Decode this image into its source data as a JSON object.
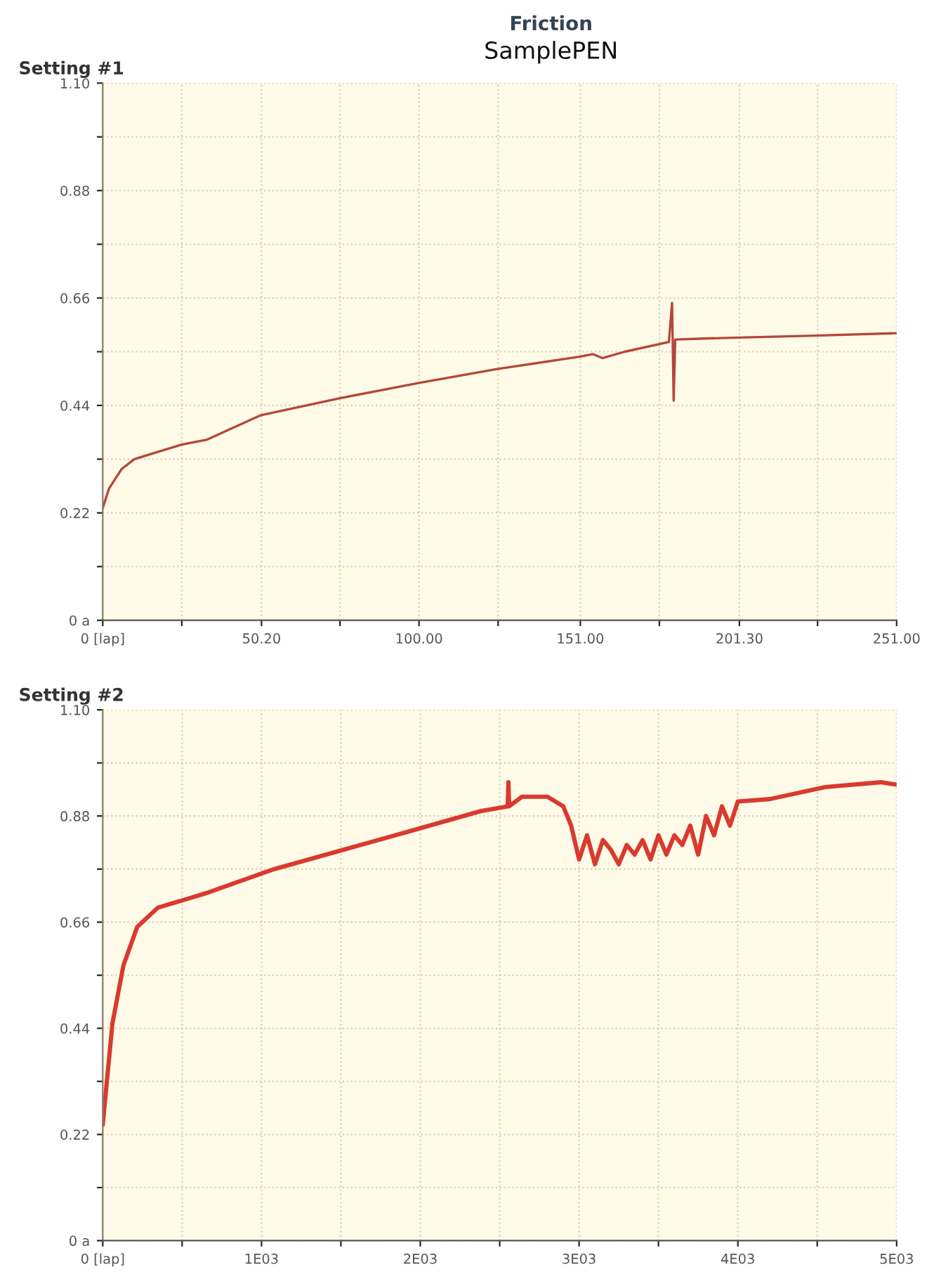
{
  "chart_data": [
    {
      "type": "line",
      "title": "Friction",
      "subtitle": "SamplePEN",
      "annotations": [
        "Setting #1"
      ],
      "x": [
        0,
        1,
        2,
        4,
        6,
        10,
        15,
        25,
        33,
        50,
        75,
        100,
        125,
        151,
        155,
        158,
        165,
        179,
        180,
        180.5,
        181,
        190,
        201,
        225,
        251
      ],
      "series": [
        {
          "color": "#b5473a",
          "values": [
            0.23,
            0.25,
            0.27,
            0.29,
            0.31,
            0.33,
            0.34,
            0.36,
            0.37,
            0.42,
            0.455,
            0.486,
            0.515,
            0.54,
            0.545,
            0.537,
            0.55,
            0.57,
            0.65,
            0.45,
            0.575,
            0.577,
            0.579,
            0.583,
            0.588
          ]
        }
      ],
      "xlim": [
        0,
        251
      ],
      "ylim": [
        0,
        1.1
      ],
      "xticks": [
        {
          "value": 0,
          "label": "0 [lap]"
        },
        {
          "value": 25,
          "label": null
        },
        {
          "value": 50.2,
          "label": "50.20"
        },
        {
          "value": 75,
          "label": null
        },
        {
          "value": 100,
          "label": "100.00"
        },
        {
          "value": 125,
          "label": null
        },
        {
          "value": 151,
          "label": "151.00"
        },
        {
          "value": 176,
          "label": null
        },
        {
          "value": 201.3,
          "label": "201.30"
        },
        {
          "value": 226,
          "label": null
        },
        {
          "value": 251,
          "label": "251.00"
        }
      ],
      "yticks": [
        {
          "value": 0,
          "label": "0 a"
        },
        {
          "value": 0.11,
          "label": null
        },
        {
          "value": 0.22,
          "label": "0.22"
        },
        {
          "value": 0.33,
          "label": null
        },
        {
          "value": 0.44,
          "label": "0.44"
        },
        {
          "value": 0.55,
          "label": null
        },
        {
          "value": 0.66,
          "label": "0.66"
        },
        {
          "value": 0.77,
          "label": null
        },
        {
          "value": 0.88,
          "label": "0.88"
        },
        {
          "value": 0.99,
          "label": null
        },
        {
          "value": 1.1,
          "label": "1.10"
        }
      ],
      "grid": true,
      "line_style": "solid"
    },
    {
      "type": "line",
      "title": "Setting #2",
      "x": [
        0,
        26,
        61,
        130,
        217,
        347,
        650,
        1080,
        1515,
        1950,
        2380,
        2550,
        2555,
        2560,
        2640,
        2800,
        2900,
        2950,
        3000,
        3050,
        3100,
        3150,
        3200,
        3250,
        3300,
        3350,
        3400,
        3450,
        3500,
        3550,
        3600,
        3650,
        3700,
        3750,
        3800,
        3850,
        3900,
        3950,
        4000,
        4200,
        4550,
        4900,
        5000
      ],
      "series": [
        {
          "color": "#d93a2f",
          "values": [
            0.24,
            0.33,
            0.45,
            0.57,
            0.65,
            0.69,
            0.72,
            0.77,
            0.81,
            0.85,
            0.89,
            0.9,
            0.95,
            0.9,
            0.92,
            0.92,
            0.9,
            0.86,
            0.79,
            0.84,
            0.78,
            0.83,
            0.81,
            0.78,
            0.82,
            0.8,
            0.83,
            0.79,
            0.84,
            0.8,
            0.84,
            0.82,
            0.86,
            0.8,
            0.88,
            0.84,
            0.9,
            0.86,
            0.91,
            0.915,
            0.94,
            0.95,
            0.945
          ]
        }
      ],
      "xlim": [
        0,
        5000
      ],
      "ylim": [
        0,
        1.1
      ],
      "xticks": [
        {
          "value": 0,
          "label": "0 [lap]"
        },
        {
          "value": 500,
          "label": null
        },
        {
          "value": 1000,
          "label": "1E03"
        },
        {
          "value": 1500,
          "label": null
        },
        {
          "value": 2000,
          "label": "2E03"
        },
        {
          "value": 2500,
          "label": null
        },
        {
          "value": 3000,
          "label": "3E03"
        },
        {
          "value": 3500,
          "label": null
        },
        {
          "value": 4000,
          "label": "4E03"
        },
        {
          "value": 4500,
          "label": null
        },
        {
          "value": 5000,
          "label": "5E03"
        }
      ],
      "yticks": [
        {
          "value": 0,
          "label": "0 a"
        },
        {
          "value": 0.11,
          "label": null
        },
        {
          "value": 0.22,
          "label": "0.22"
        },
        {
          "value": 0.33,
          "label": null
        },
        {
          "value": 0.44,
          "label": "0.44"
        },
        {
          "value": 0.55,
          "label": null
        },
        {
          "value": 0.66,
          "label": "0.66"
        },
        {
          "value": 0.77,
          "label": null
        },
        {
          "value": 0.88,
          "label": "0.88"
        },
        {
          "value": 0.99,
          "label": null
        },
        {
          "value": 1.1,
          "label": "1.10"
        }
      ],
      "grid": true,
      "line_style": "solid"
    }
  ]
}
